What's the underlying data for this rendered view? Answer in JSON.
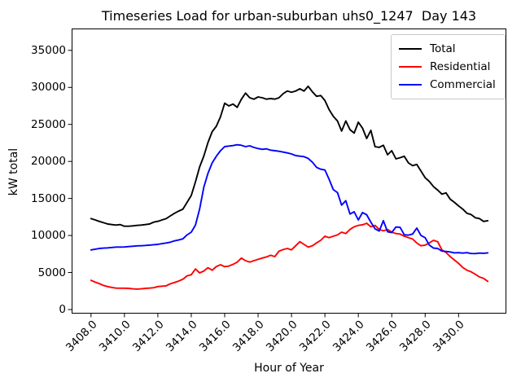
{
  "chart_data": {
    "type": "line",
    "title": "Timeseries Load for urban-suburban uhs0_1247  Day 143",
    "xlabel": "Hour of Year",
    "ylabel": "kW total",
    "grid": false,
    "legend_position": "upper right",
    "xlim": [
      3406.84,
      3432.86
    ],
    "ylim": [
      -550,
      37950
    ],
    "xticks": [
      {
        "v": 3408,
        "label": "3408.0"
      },
      {
        "v": 3410,
        "label": "3410.0"
      },
      {
        "v": 3412,
        "label": "3412.0"
      },
      {
        "v": 3414,
        "label": "3414.0"
      },
      {
        "v": 3416,
        "label": "3416.0"
      },
      {
        "v": 3418,
        "label": "3418.0"
      },
      {
        "v": 3420,
        "label": "3420.0"
      },
      {
        "v": 3422,
        "label": "3422.0"
      },
      {
        "v": 3424,
        "label": "3424.0"
      },
      {
        "v": 3426,
        "label": "3426.0"
      },
      {
        "v": 3428,
        "label": "3428.0"
      },
      {
        "v": 3430,
        "label": "3430.0"
      }
    ],
    "yticks": [
      {
        "v": 0,
        "label": "0"
      },
      {
        "v": 5000,
        "label": "5000"
      },
      {
        "v": 10000,
        "label": "10000"
      },
      {
        "v": 15000,
        "label": "15000"
      },
      {
        "v": 20000,
        "label": "20000"
      },
      {
        "v": 25000,
        "label": "25000"
      },
      {
        "v": 30000,
        "label": "30000"
      },
      {
        "v": 35000,
        "label": "35000"
      }
    ],
    "x": [
      3408.0,
      3408.25,
      3408.5,
      3408.75,
      3409.0,
      3409.25,
      3409.5,
      3409.75,
      3410.0,
      3410.25,
      3410.5,
      3410.75,
      3411.0,
      3411.25,
      3411.5,
      3411.75,
      3412.0,
      3412.25,
      3412.5,
      3412.75,
      3413.0,
      3413.25,
      3413.5,
      3413.75,
      3414.0,
      3414.25,
      3414.5,
      3414.75,
      3415.0,
      3415.25,
      3415.5,
      3415.75,
      3416.0,
      3416.25,
      3416.5,
      3416.75,
      3417.0,
      3417.25,
      3417.5,
      3417.75,
      3418.0,
      3418.25,
      3418.5,
      3418.75,
      3419.0,
      3419.25,
      3419.5,
      3419.75,
      3420.0,
      3420.25,
      3420.5,
      3420.75,
      3421.0,
      3421.25,
      3421.5,
      3421.75,
      3422.0,
      3422.25,
      3422.5,
      3422.75,
      3423.0,
      3423.25,
      3423.5,
      3423.75,
      3424.0,
      3424.25,
      3424.5,
      3424.75,
      3425.0,
      3425.25,
      3425.5,
      3425.75,
      3426.0,
      3426.25,
      3426.5,
      3426.75,
      3427.0,
      3427.25,
      3427.5,
      3427.75,
      3428.0,
      3428.25,
      3428.5,
      3428.75,
      3429.0,
      3429.25,
      3429.5,
      3429.75,
      3430.0,
      3430.25,
      3430.5,
      3430.75,
      3431.0,
      3431.25,
      3431.5,
      3431.75
    ],
    "series": [
      {
        "name": "Total",
        "color": "#000000",
        "values": [
          12280,
          12100,
          11900,
          11730,
          11550,
          11470,
          11400,
          11470,
          11250,
          11250,
          11300,
          11360,
          11400,
          11470,
          11550,
          11800,
          11910,
          12100,
          12280,
          12650,
          13000,
          13300,
          13560,
          14480,
          15400,
          17230,
          19250,
          20710,
          22550,
          24010,
          24750,
          26030,
          27860,
          27500,
          27750,
          27310,
          28400,
          29230,
          28600,
          28410,
          28710,
          28600,
          28410,
          28490,
          28410,
          28600,
          29150,
          29510,
          29340,
          29510,
          29810,
          29510,
          30150,
          29400,
          28800,
          28900,
          28230,
          27000,
          26100,
          25470,
          24100,
          25470,
          24300,
          23830,
          25300,
          24500,
          23100,
          24200,
          22000,
          21900,
          22180,
          20900,
          21450,
          20350,
          20500,
          20700,
          19800,
          19430,
          19600,
          18700,
          17800,
          17300,
          16600,
          16130,
          15580,
          15760,
          14900,
          14480,
          14000,
          13560,
          13000,
          12830,
          12400,
          12280,
          11900,
          12000
        ]
      },
      {
        "name": "Residential",
        "color": "#ff0000",
        "values": [
          3950,
          3700,
          3500,
          3250,
          3100,
          2980,
          2900,
          2880,
          2880,
          2860,
          2800,
          2760,
          2800,
          2860,
          2900,
          2950,
          3100,
          3150,
          3200,
          3480,
          3650,
          3850,
          4100,
          4550,
          4700,
          5480,
          4950,
          5200,
          5650,
          5310,
          5800,
          6050,
          5790,
          5870,
          6100,
          6400,
          6950,
          6600,
          6410,
          6600,
          6780,
          6950,
          7100,
          7330,
          7150,
          7880,
          8100,
          8250,
          8060,
          8610,
          9160,
          8800,
          8430,
          8610,
          9000,
          9350,
          9900,
          9710,
          9900,
          10080,
          10450,
          10260,
          10810,
          11180,
          11360,
          11440,
          11650,
          11180,
          11360,
          10810,
          10630,
          10810,
          10450,
          10260,
          10190,
          9900,
          9710,
          9530,
          8980,
          8610,
          8700,
          9000,
          9350,
          9160,
          8060,
          7700,
          7150,
          6700,
          6230,
          5680,
          5310,
          5100,
          4760,
          4400,
          4210,
          3800
        ]
      },
      {
        "name": "Commercial",
        "color": "#0000ff",
        "values": [
          8050,
          8150,
          8250,
          8300,
          8330,
          8380,
          8430,
          8430,
          8450,
          8500,
          8550,
          8600,
          8620,
          8650,
          8700,
          8750,
          8800,
          8900,
          8980,
          9100,
          9280,
          9400,
          9550,
          10080,
          10450,
          11400,
          13560,
          16500,
          18400,
          19800,
          20700,
          21450,
          22000,
          22070,
          22150,
          22250,
          22180,
          22000,
          22110,
          21890,
          21740,
          21630,
          21700,
          21520,
          21450,
          21370,
          21260,
          21150,
          21010,
          20790,
          20710,
          20640,
          20400,
          19900,
          19200,
          18950,
          18850,
          17600,
          16200,
          15800,
          14100,
          14700,
          12900,
          13200,
          12100,
          13100,
          12800,
          11800,
          10900,
          10600,
          12000,
          10500,
          10400,
          11150,
          11100,
          10100,
          10050,
          10200,
          11000,
          10000,
          9700,
          8700,
          8300,
          8250,
          7900,
          7850,
          7780,
          7650,
          7680,
          7620,
          7680,
          7570,
          7560,
          7620,
          7600,
          7650
        ]
      }
    ]
  }
}
